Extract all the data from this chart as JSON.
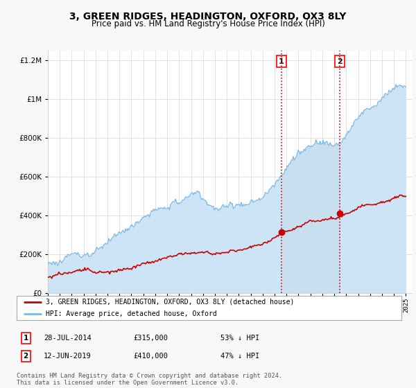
{
  "title": "3, GREEN RIDGES, HEADINGTON, OXFORD, OX3 8LY",
  "subtitle": "Price paid vs. HM Land Registry's House Price Index (HPI)",
  "sale1_label": "28-JUL-2014",
  "sale1_price": 315000,
  "sale1_year": 2014.571,
  "sale1_pct": "53% ↓ HPI",
  "sale2_label": "12-JUN-2019",
  "sale2_price": 410000,
  "sale2_year": 2019.452,
  "sale2_pct": "47% ↓ HPI",
  "hpi_color": "#7ab8e0",
  "hpi_fill_color": "#cce4f5",
  "hpi_fill_between_color": "#c8dff0",
  "price_color": "#cc0000",
  "vline_color": "#cc0000",
  "ylim_max": 1250000,
  "yticks": [
    0,
    200000,
    400000,
    600000,
    800000,
    1000000,
    1200000
  ],
  "xlim_min": 1995,
  "xlim_max": 2025.5,
  "legend_label_price": "3, GREEN RIDGES, HEADINGTON, OXFORD, OX3 8LY (detached house)",
  "legend_label_hpi": "HPI: Average price, detached house, Oxford",
  "footer": "Contains HM Land Registry data © Crown copyright and database right 2024.\nThis data is licensed under the Open Government Licence v3.0.",
  "bg_color": "#f8f8f8",
  "plot_bg_color": "#ffffff",
  "grid_color": "#dddddd",
  "title_fontsize": 10,
  "subtitle_fontsize": 8.5
}
